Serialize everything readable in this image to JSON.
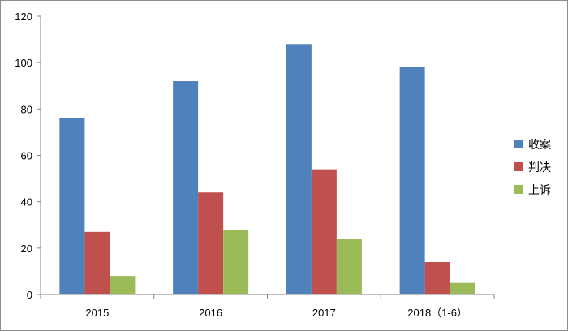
{
  "chart_data": {
    "type": "bar",
    "categories": [
      "2015",
      "2016",
      "2017",
      "2018（1-6）"
    ],
    "series": [
      {
        "name": "收案",
        "color": "#4f81bd",
        "values": [
          76,
          92,
          108,
          98
        ]
      },
      {
        "name": "判决",
        "color": "#c0504d",
        "values": [
          27,
          44,
          54,
          14
        ]
      },
      {
        "name": "上诉",
        "color": "#9bbb59",
        "values": [
          8,
          28,
          24,
          5
        ]
      }
    ],
    "ylim": [
      0,
      120
    ],
    "yticks": [
      0,
      20,
      40,
      60,
      80,
      100,
      120
    ],
    "grid": false,
    "legend": "right"
  }
}
